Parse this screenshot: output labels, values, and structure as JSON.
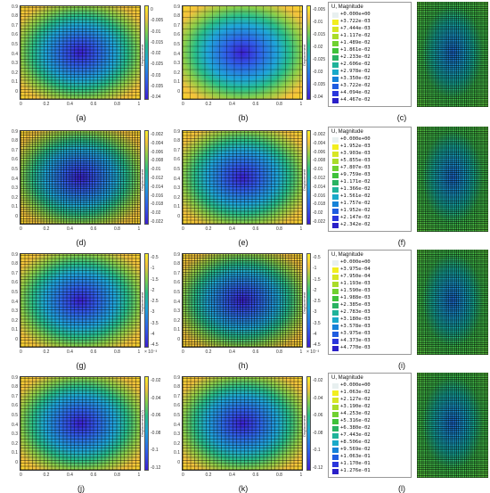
{
  "chart_data": [
    {
      "type": "heatmap",
      "panel": "(a)",
      "cbar_label": "Displacement",
      "xticks": [
        "0",
        "0.2",
        "0.4",
        "0.6",
        "0.8",
        "1"
      ],
      "yticks": [
        "0",
        "0.1",
        "0.2",
        "0.3",
        "0.4",
        "0.5",
        "0.6",
        "0.7",
        "0.8",
        "0.9"
      ],
      "cbar_ticks": [
        "0",
        "-0.005",
        "-0.01",
        "-0.015",
        "-0.02",
        "-0.025",
        "-0.03",
        "-0.035",
        "-0.04"
      ],
      "xlim": [
        0,
        1
      ],
      "ylim": [
        0,
        1
      ]
    },
    {
      "type": "heatmap",
      "panel": "(b)",
      "cbar_label": "Displacement",
      "xticks": [
        "0",
        "0.2",
        "0.4",
        "0.6",
        "0.8",
        "1"
      ],
      "yticks": [
        "0",
        "0.1",
        "0.2",
        "0.3",
        "0.4",
        "0.5",
        "0.6",
        "0.7",
        "0.8",
        "0.9"
      ],
      "cbar_ticks": [
        "-0.005",
        "-0.01",
        "-0.015",
        "-0.02",
        "-0.025",
        "-0.03",
        "-0.035",
        "-0.04"
      ],
      "xlim": [
        0,
        1
      ],
      "ylim": [
        0,
        1
      ]
    },
    {
      "type": "heatmap",
      "panel": "(c)",
      "legend_title": "U, Magnitude",
      "legend_values": [
        "+0.000e+00",
        "+3.722e-03",
        "+7.444e-03",
        "+1.117e-02",
        "+1.489e-02",
        "+1.861e-02",
        "+2.233e-02",
        "+2.606e-02",
        "+2.978e-02",
        "+3.350e-02",
        "+3.722e-02",
        "+4.094e-02",
        "+4.467e-02"
      ]
    },
    {
      "type": "heatmap",
      "panel": "(d)",
      "cbar_label": "Displacement",
      "xticks": [
        "0",
        "0.2",
        "0.4",
        "0.6",
        "0.8",
        "1"
      ],
      "yticks": [
        "0",
        "0.1",
        "0.2",
        "0.3",
        "0.4",
        "0.5",
        "0.6",
        "0.7",
        "0.8",
        "0.9"
      ],
      "cbar_ticks": [
        "-0.002",
        "-0.004",
        "-0.006",
        "-0.008",
        "-0.01",
        "-0.012",
        "-0.014",
        "-0.016",
        "-0.018",
        "-0.02",
        "-0.022"
      ],
      "xlim": [
        0,
        1
      ],
      "ylim": [
        0,
        1
      ]
    },
    {
      "type": "heatmap",
      "panel": "(e)",
      "cbar_label": "Displacement",
      "xticks": [
        "0",
        "0.2",
        "0.4",
        "0.6",
        "0.8",
        "1"
      ],
      "yticks": [
        "0",
        "0.1",
        "0.2",
        "0.3",
        "0.4",
        "0.5",
        "0.6",
        "0.7",
        "0.8",
        "0.9"
      ],
      "cbar_ticks": [
        "-0.002",
        "-0.004",
        "-0.006",
        "-0.008",
        "-0.01",
        "-0.012",
        "-0.014",
        "-0.016",
        "-0.018",
        "-0.02",
        "-0.022"
      ],
      "xlim": [
        0,
        1
      ],
      "ylim": [
        0,
        1
      ]
    },
    {
      "type": "heatmap",
      "panel": "(f)",
      "legend_title": "U, Magnitude",
      "legend_values": [
        "+0.000e+00",
        "+1.952e-03",
        "+3.903e-03",
        "+5.855e-03",
        "+7.807e-03",
        "+9.759e-03",
        "+1.171e-02",
        "+1.366e-02",
        "+1.561e-02",
        "+1.757e-02",
        "+1.952e-02",
        "+2.147e-02",
        "+2.342e-02"
      ]
    },
    {
      "type": "heatmap",
      "panel": "(g)",
      "cbar_label": "Displacement",
      "cbar_exponent": "× 10⁻³",
      "xticks": [
        "0",
        "0.2",
        "0.4",
        "0.6",
        "0.8",
        "1"
      ],
      "yticks": [
        "0",
        "0.1",
        "0.2",
        "0.3",
        "0.4",
        "0.5",
        "0.6",
        "0.7",
        "0.8",
        "0.9"
      ],
      "cbar_ticks": [
        "-0.5",
        "-1",
        "-1.5",
        "-2",
        "-2.5",
        "-3",
        "-3.5",
        "-4",
        "-4.5"
      ],
      "xlim": [
        0,
        1
      ],
      "ylim": [
        0,
        1
      ]
    },
    {
      "type": "heatmap",
      "panel": "(h)",
      "cbar_label": "Displacement",
      "cbar_exponent": "× 10⁻³",
      "xticks": [
        "0",
        "0.2",
        "0.4",
        "0.6",
        "0.8",
        "1"
      ],
      "yticks": [
        "0",
        "0.1",
        "0.2",
        "0.3",
        "0.4",
        "0.5",
        "0.6",
        "0.7",
        "0.8",
        "0.9"
      ],
      "cbar_ticks": [
        "-0.5",
        "-1",
        "-1.5",
        "-2",
        "-2.5",
        "-3",
        "-3.5",
        "-4",
        "-4.5"
      ],
      "xlim": [
        0,
        1
      ],
      "ylim": [
        0,
        1
      ]
    },
    {
      "type": "heatmap",
      "panel": "(i)",
      "legend_title": "U, Magnitude",
      "legend_values": [
        "+0.000e+00",
        "+3.975e-04",
        "+7.950e-04",
        "+1.193e-03",
        "+1.590e-03",
        "+1.988e-03",
        "+2.385e-03",
        "+2.783e-03",
        "+3.180e-03",
        "+3.578e-03",
        "+3.975e-03",
        "+4.373e-03",
        "+4.770e-03"
      ]
    },
    {
      "type": "heatmap",
      "panel": "(j)",
      "cbar_label": "Displacement(U)",
      "xticks": [
        "0",
        "0.2",
        "0.4",
        "0.6",
        "0.8",
        "1"
      ],
      "yticks": [
        "0",
        "0.1",
        "0.2",
        "0.3",
        "0.4",
        "0.5",
        "0.6",
        "0.7",
        "0.8",
        "0.9"
      ],
      "cbar_ticks": [
        "-0.02",
        "-0.04",
        "-0.06",
        "-0.08",
        "-0.1",
        "-0.12"
      ],
      "xlim": [
        0,
        1
      ],
      "ylim": [
        0,
        1
      ]
    },
    {
      "type": "heatmap",
      "panel": "(k)",
      "cbar_label": "Displacement",
      "xticks": [
        "0",
        "0.2",
        "0.4",
        "0.6",
        "0.8",
        "1"
      ],
      "yticks": [
        "0",
        "0.1",
        "0.2",
        "0.3",
        "0.4",
        "0.5",
        "0.6",
        "0.7",
        "0.8",
        "0.9"
      ],
      "cbar_ticks": [
        "-0.02",
        "-0.04",
        "-0.06",
        "-0.08",
        "-0.1",
        "-0.12"
      ],
      "xlim": [
        0,
        1
      ],
      "ylim": [
        0,
        1
      ]
    },
    {
      "type": "heatmap",
      "panel": "(l)",
      "legend_title": "U, Magnitude",
      "legend_values": [
        "+0.000e+00",
        "+1.063e-02",
        "+2.127e-02",
        "+3.190e-02",
        "+4.253e-02",
        "+5.316e-02",
        "+6.380e-02",
        "+7.443e-02",
        "+8.506e-02",
        "+9.569e-02",
        "+1.063e-01",
        "+1.170e-01",
        "+1.276e-01"
      ]
    }
  ],
  "colors": {
    "legend_swatches": [
      "#e8f0f0",
      "#f2ee1f",
      "#d7e624",
      "#a9dc2a",
      "#6fd130",
      "#3fc23a",
      "#2ab361",
      "#1fb39a",
      "#19a9c9",
      "#1682d8",
      "#1f5de0",
      "#2a36dc",
      "#2a1fc8"
    ]
  }
}
